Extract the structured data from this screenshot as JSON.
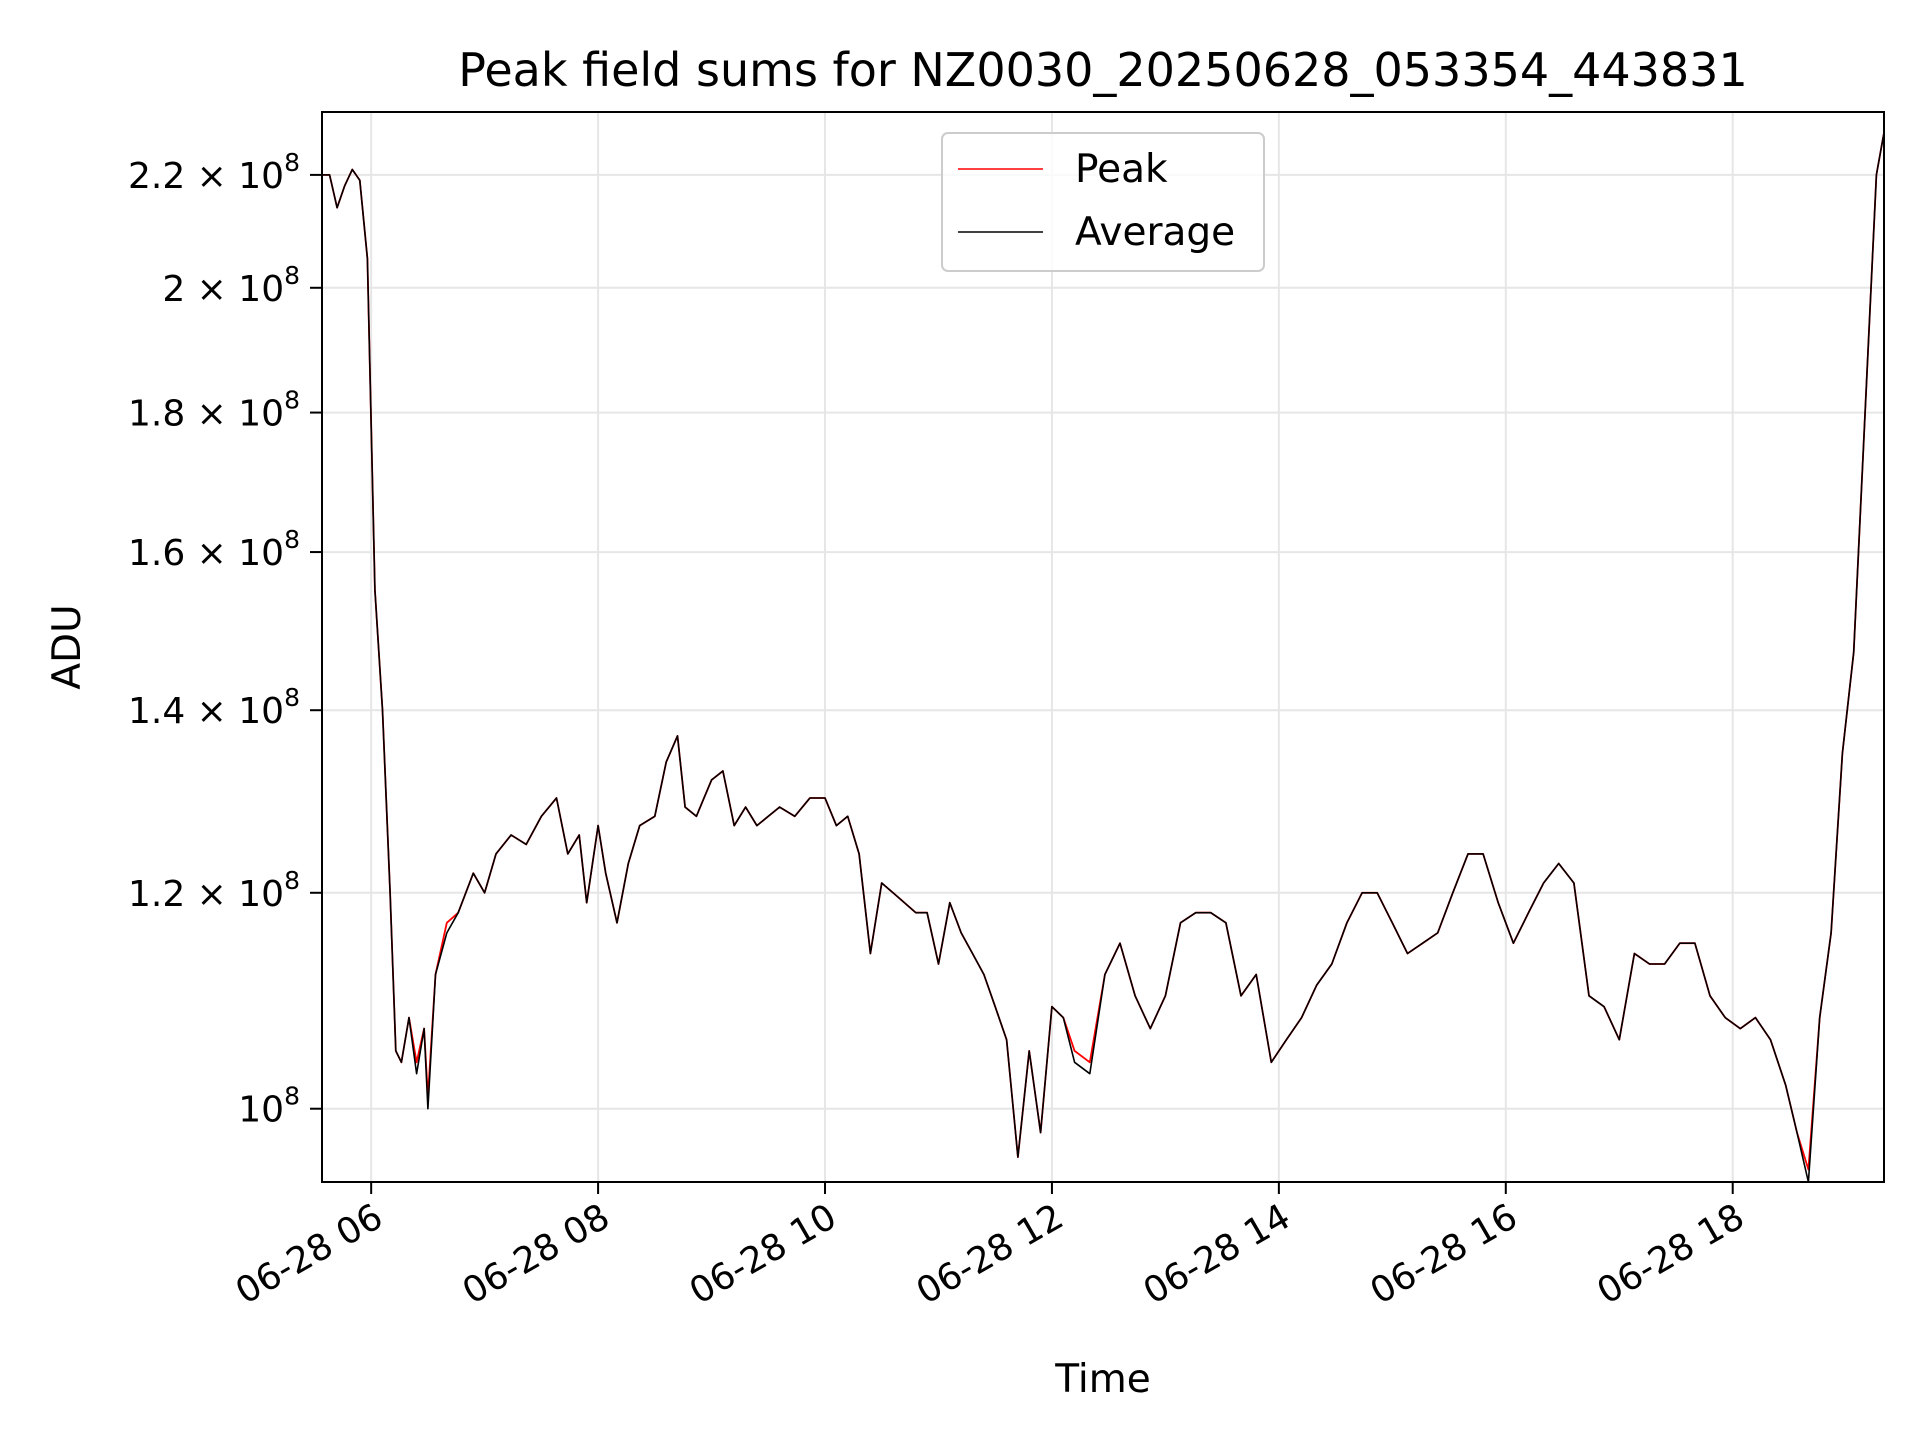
{
  "chart_data": {
    "type": "line",
    "title": "Peak field sums for NZ0030_20250628_053354_443831",
    "xlabel": "Time",
    "ylabel": "ADU",
    "yscale": "log",
    "xlim": [
      "06-28 05:34",
      "06-28 19:20"
    ],
    "ylim": [
      94000000,
      232000000
    ],
    "grid": true,
    "legend": "top-center",
    "x_ticks": [
      {
        "t": "06-28 06:00",
        "label": "06-28 06"
      },
      {
        "t": "06-28 08:00",
        "label": "06-28 08"
      },
      {
        "t": "06-28 10:00",
        "label": "06-28 10"
      },
      {
        "t": "06-28 12:00",
        "label": "06-28 12"
      },
      {
        "t": "06-28 14:00",
        "label": "06-28 14"
      },
      {
        "t": "06-28 16:00",
        "label": "06-28 16"
      },
      {
        "t": "06-28 18:00",
        "label": "06-28 18"
      }
    ],
    "y_ticks": [
      {
        "value": 100000000,
        "mantissa": "",
        "exp": "8"
      },
      {
        "value": 120000000,
        "mantissa": "1.2 × ",
        "exp": "8"
      },
      {
        "value": 140000000,
        "mantissa": "1.4 × ",
        "exp": "8"
      },
      {
        "value": 160000000,
        "mantissa": "1.6 × ",
        "exp": "8"
      },
      {
        "value": 180000000,
        "mantissa": "1.8 × ",
        "exp": "8"
      },
      {
        "value": 200000000,
        "mantissa": "2 × ",
        "exp": "8"
      },
      {
        "value": 220000000,
        "mantissa": "2.2 × ",
        "exp": "8"
      }
    ],
    "series": [
      {
        "name": "Peak",
        "color": "#ff0000"
      },
      {
        "name": "Average",
        "color": "#000000"
      }
    ],
    "x": [
      "06-28 05:34",
      "06-28 05:38",
      "06-28 05:42",
      "06-28 05:46",
      "06-28 05:50",
      "06-28 05:54",
      "06-28 05:58",
      "06-28 06:02",
      "06-28 06:06",
      "06-28 06:10",
      "06-28 06:13",
      "06-28 06:16",
      "06-28 06:20",
      "06-28 06:24",
      "06-28 06:28",
      "06-28 06:30",
      "06-28 06:34",
      "06-28 06:40",
      "06-28 06:46",
      "06-28 06:54",
      "06-28 07:00",
      "06-28 07:06",
      "06-28 07:14",
      "06-28 07:22",
      "06-28 07:30",
      "06-28 07:38",
      "06-28 07:44",
      "06-28 07:50",
      "06-28 07:54",
      "06-28 08:00",
      "06-28 08:04",
      "06-28 08:10",
      "06-28 08:16",
      "06-28 08:22",
      "06-28 08:30",
      "06-28 08:36",
      "06-28 08:42",
      "06-28 08:46",
      "06-28 08:52",
      "06-28 08:56",
      "06-28 09:00",
      "06-28 09:06",
      "06-28 09:12",
      "06-28 09:18",
      "06-28 09:24",
      "06-28 09:30",
      "06-28 09:36",
      "06-28 09:44",
      "06-28 09:52",
      "06-28 10:00",
      "06-28 10:06",
      "06-28 10:12",
      "06-28 10:18",
      "06-28 10:24",
      "06-28 10:30",
      "06-28 10:36",
      "06-28 10:42",
      "06-28 10:48",
      "06-28 10:54",
      "06-28 11:00",
      "06-28 11:06",
      "06-28 11:12",
      "06-28 11:18",
      "06-28 11:24",
      "06-28 11:30",
      "06-28 11:36",
      "06-28 11:42",
      "06-28 11:48",
      "06-28 11:54",
      "06-28 12:00",
      "06-28 12:06",
      "06-28 12:12",
      "06-28 12:20",
      "06-28 12:28",
      "06-28 12:36",
      "06-28 12:44",
      "06-28 12:52",
      "06-28 13:00",
      "06-28 13:08",
      "06-28 13:16",
      "06-28 13:24",
      "06-28 13:32",
      "06-28 13:40",
      "06-28 13:48",
      "06-28 13:56",
      "06-28 14:04",
      "06-28 14:12",
      "06-28 14:20",
      "06-28 14:28",
      "06-28 14:36",
      "06-28 14:44",
      "06-28 14:52",
      "06-28 15:00",
      "06-28 15:08",
      "06-28 15:16",
      "06-28 15:24",
      "06-28 15:32",
      "06-28 15:40",
      "06-28 15:48",
      "06-28 15:56",
      "06-28 16:04",
      "06-28 16:12",
      "06-28 16:20",
      "06-28 16:28",
      "06-28 16:36",
      "06-28 16:44",
      "06-28 16:52",
      "06-28 17:00",
      "06-28 17:08",
      "06-28 17:16",
      "06-28 17:24",
      "06-28 17:32",
      "06-28 17:40",
      "06-28 17:48",
      "06-28 17:56",
      "06-28 18:04",
      "06-28 18:12",
      "06-28 18:20",
      "06-28 18:28",
      "06-28 18:34",
      "06-28 18:40",
      "06-28 18:46",
      "06-28 18:52",
      "06-28 18:58",
      "06-28 19:04",
      "06-28 19:10",
      "06-28 19:16",
      "06-28 19:20"
    ],
    "peak": [
      220,
      220,
      214,
      218,
      221,
      219,
      205,
      155,
      140,
      120,
      105,
      104,
      108,
      104,
      107,
      101,
      112,
      117,
      118,
      122,
      120,
      124,
      126,
      125,
      128,
      130,
      124,
      126,
      119,
      127,
      122,
      117,
      123,
      127,
      128,
      134,
      137,
      129,
      128,
      130,
      132,
      133,
      127,
      129,
      127,
      128,
      129,
      128,
      130,
      130,
      127,
      128,
      124,
      114,
      121,
      120,
      119,
      118,
      118,
      113,
      119,
      116,
      114,
      112,
      109,
      106,
      96,
      105,
      98,
      109,
      108,
      105,
      104,
      112,
      115,
      110,
      107,
      110,
      117,
      118,
      118,
      117,
      110,
      112,
      104,
      106,
      108,
      111,
      113,
      117,
      120,
      120,
      117,
      114,
      115,
      116,
      120,
      124,
      124,
      119,
      115,
      118,
      121,
      123,
      121,
      110,
      109,
      106,
      114,
      113,
      113,
      115,
      115,
      110,
      108,
      107,
      108,
      106,
      102,
      98,
      95,
      108,
      116,
      135,
      147,
      180,
      220,
      228,
      229
    ],
    "average": [
      220,
      220,
      214,
      218,
      221,
      219,
      205,
      155,
      140,
      120,
      105,
      104,
      108,
      103,
      107,
      100,
      112,
      116,
      118,
      122,
      120,
      124,
      126,
      125,
      128,
      130,
      124,
      126,
      119,
      127,
      122,
      117,
      123,
      127,
      128,
      134,
      137,
      129,
      128,
      130,
      132,
      133,
      127,
      129,
      127,
      128,
      129,
      128,
      130,
      130,
      127,
      128,
      124,
      114,
      121,
      120,
      119,
      118,
      118,
      113,
      119,
      116,
      114,
      112,
      109,
      106,
      96,
      105,
      98,
      109,
      108,
      104,
      103,
      112,
      115,
      110,
      107,
      110,
      117,
      118,
      118,
      117,
      110,
      112,
      104,
      106,
      108,
      111,
      113,
      117,
      120,
      120,
      117,
      114,
      115,
      116,
      120,
      124,
      124,
      119,
      115,
      118,
      121,
      123,
      121,
      110,
      109,
      106,
      114,
      113,
      113,
      115,
      115,
      110,
      108,
      107,
      108,
      106,
      102,
      98,
      94,
      108,
      116,
      135,
      147,
      180,
      220,
      228,
      229
    ],
    "value_units": "millions of ADU"
  }
}
